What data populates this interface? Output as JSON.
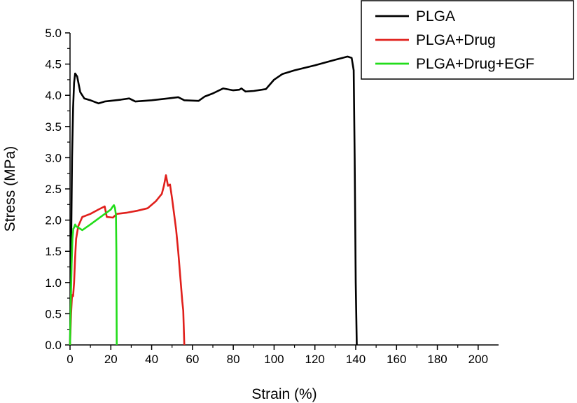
{
  "chart_data": {
    "type": "line",
    "xlabel": "Strain (%)",
    "ylabel": "Stress (MPa)",
    "xlim": [
      0,
      210
    ],
    "ylim": [
      0,
      5
    ],
    "xticks": [
      0,
      20,
      40,
      60,
      80,
      100,
      120,
      140,
      160,
      180,
      200
    ],
    "yticks": [
      0.0,
      0.5,
      1.0,
      1.5,
      2.0,
      2.5,
      3.0,
      3.5,
      4.0,
      4.5,
      5.0
    ],
    "ytick_labels": [
      "0.0",
      "0.5",
      "1.0",
      "1.5",
      "2.0",
      "2.5",
      "3.0",
      "3.5",
      "4.0",
      "4.5",
      "5.0"
    ],
    "legend_position": "top-right",
    "series": [
      {
        "name": "PLGA",
        "color": "#000000",
        "points": [
          [
            0,
            0
          ],
          [
            0.5,
            1.5
          ],
          [
            1,
            3.0
          ],
          [
            1.5,
            3.8
          ],
          [
            2,
            4.2
          ],
          [
            2.5,
            4.35
          ],
          [
            3.5,
            4.3
          ],
          [
            5,
            4.05
          ],
          [
            7,
            3.95
          ],
          [
            10,
            3.92
          ],
          [
            14,
            3.87
          ],
          [
            17,
            3.9
          ],
          [
            25,
            3.93
          ],
          [
            29,
            3.95
          ],
          [
            32,
            3.9
          ],
          [
            40,
            3.92
          ],
          [
            48,
            3.95
          ],
          [
            53,
            3.97
          ],
          [
            56,
            3.92
          ],
          [
            63,
            3.91
          ],
          [
            66,
            3.98
          ],
          [
            70,
            4.03
          ],
          [
            75,
            4.11
          ],
          [
            80,
            4.08
          ],
          [
            83,
            4.09
          ],
          [
            84,
            4.11
          ],
          [
            86,
            4.06
          ],
          [
            90,
            4.07
          ],
          [
            96,
            4.1
          ],
          [
            100,
            4.25
          ],
          [
            104,
            4.34
          ],
          [
            110,
            4.4
          ],
          [
            120,
            4.48
          ],
          [
            130,
            4.57
          ],
          [
            136,
            4.62
          ],
          [
            138,
            4.6
          ],
          [
            139,
            4.4
          ],
          [
            139.5,
            3.0
          ],
          [
            140,
            1.0
          ],
          [
            140.5,
            0
          ]
        ]
      },
      {
        "name": "PLGA+Drug",
        "color": "#e0201c",
        "points": [
          [
            0,
            0
          ],
          [
            0.5,
            0.5
          ],
          [
            1,
            0.8
          ],
          [
            1.5,
            0.78
          ],
          [
            2,
            1.0
          ],
          [
            2.5,
            1.4
          ],
          [
            3,
            1.7
          ],
          [
            4,
            1.9
          ],
          [
            6,
            2.05
          ],
          [
            10,
            2.1
          ],
          [
            14,
            2.17
          ],
          [
            17,
            2.22
          ],
          [
            18,
            2.05
          ],
          [
            21,
            2.04
          ],
          [
            23,
            2.1
          ],
          [
            28,
            2.12
          ],
          [
            33,
            2.15
          ],
          [
            38,
            2.19
          ],
          [
            42,
            2.3
          ],
          [
            45,
            2.42
          ],
          [
            46,
            2.55
          ],
          [
            47,
            2.72
          ],
          [
            48,
            2.55
          ],
          [
            49,
            2.57
          ],
          [
            50,
            2.35
          ],
          [
            51,
            2.1
          ],
          [
            52,
            1.85
          ],
          [
            53,
            1.5
          ],
          [
            54,
            1.1
          ],
          [
            55,
            0.7
          ],
          [
            55.5,
            0.55
          ],
          [
            56,
            0
          ]
        ]
      },
      {
        "name": "PLGA+Drug+EGF",
        "color": "#22dd1b",
        "points": [
          [
            0,
            0
          ],
          [
            0.3,
            0.6
          ],
          [
            0.8,
            1.3
          ],
          [
            1.2,
            1.7
          ],
          [
            1.6,
            1.86
          ],
          [
            2,
            1.88
          ],
          [
            2.5,
            1.93
          ],
          [
            3,
            1.9
          ],
          [
            4,
            1.88
          ],
          [
            6,
            1.84
          ],
          [
            10,
            1.93
          ],
          [
            15,
            2.05
          ],
          [
            20,
            2.17
          ],
          [
            21,
            2.22
          ],
          [
            21.5,
            2.24
          ],
          [
            22,
            2.2
          ],
          [
            22.5,
            2.08
          ],
          [
            22.7,
            1.5
          ],
          [
            22.9,
            0
          ]
        ]
      }
    ]
  }
}
